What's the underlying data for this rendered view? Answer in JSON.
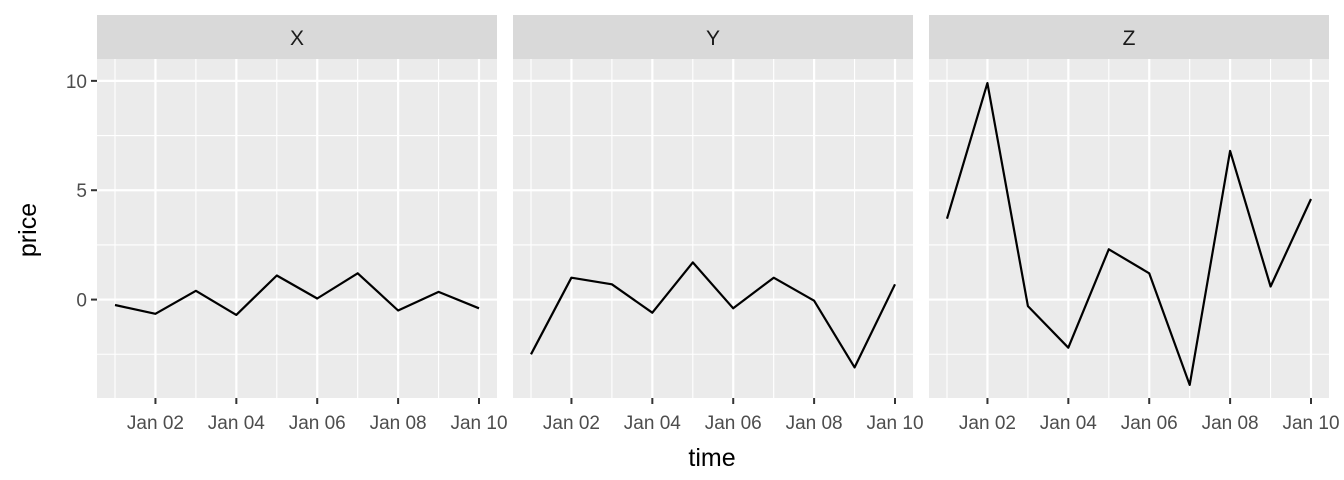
{
  "chart_data": {
    "type": "line",
    "xlabel": "time",
    "ylabel": "price",
    "x": [
      "2020-01-01",
      "2020-01-02",
      "2020-01-03",
      "2020-01-04",
      "2020-01-05",
      "2020-01-06",
      "2020-01-07",
      "2020-01-08",
      "2020-01-09",
      "2020-01-10"
    ],
    "x_tick_labels": [
      "Jan 02",
      "Jan 04",
      "Jan 06",
      "Jan 08",
      "Jan 10"
    ],
    "y_ticks": [
      0,
      5,
      10
    ],
    "ylim": [
      -4.5,
      11
    ],
    "grid": true,
    "line_color": "#000000",
    "panels": [
      {
        "facet": "X",
        "values": [
          -0.25,
          -0.65,
          0.4,
          -0.7,
          1.1,
          0.05,
          1.2,
          -0.5,
          0.35,
          -0.4
        ]
      },
      {
        "facet": "Y",
        "values": [
          -2.5,
          1.0,
          0.7,
          -0.6,
          1.7,
          -0.4,
          1.0,
          -0.05,
          -3.1,
          0.7
        ]
      },
      {
        "facet": "Z",
        "values": [
          3.7,
          9.9,
          -0.3,
          -2.2,
          2.3,
          1.2,
          -3.9,
          6.8,
          0.6,
          4.6
        ]
      }
    ]
  }
}
